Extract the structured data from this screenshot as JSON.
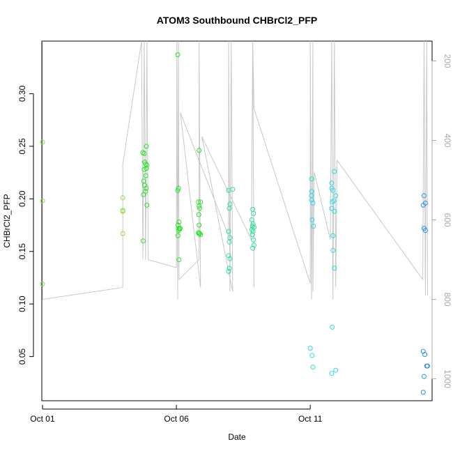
{
  "chart_data": {
    "type": "scatter",
    "title": "ATOM3 Southbound CHBrCl2_PFP",
    "xlabel": "Date",
    "ylabel": "CHBrCl2_PFP",
    "x_ticks": [
      "Oct 01",
      "Oct 06",
      "Oct 11"
    ],
    "x_tick_values": [
      1,
      6,
      11
    ],
    "xlim": [
      0.975,
      15.55
    ],
    "y_ticks": [
      "0.05",
      "0.10",
      "0.15",
      "0.20",
      "0.25",
      "0.30"
    ],
    "y_tick_values": [
      0.05,
      0.1,
      0.15,
      0.2,
      0.25,
      0.3
    ],
    "ylim": [
      0.008,
      0.35
    ],
    "y2_ticks": [
      "200",
      "400",
      "600",
      "800",
      "1000"
    ],
    "y2_tick_values": [
      200,
      400,
      600,
      800,
      1000
    ],
    "y2lim": [
      1055,
      150
    ],
    "colors": {
      "point_lime": "#8fe040",
      "point_green": "#2be02b",
      "point_mint": "#2be09a",
      "point_cyan": "#2bd8e8",
      "point_blue": "#2b8fe8",
      "altitude_line": "#c8c8c8",
      "right_axis": "#a8a8a8"
    },
    "series": [
      {
        "color_key": "point_lime",
        "points": [
          [
            1.0,
            0.254
          ],
          [
            1.0,
            0.198
          ],
          [
            1.0,
            0.119
          ],
          [
            4.0,
            0.201
          ],
          [
            4.0,
            0.189
          ],
          [
            4.0,
            0.188
          ],
          [
            4.0,
            0.167
          ]
        ]
      },
      {
        "color_key": "point_green",
        "points": [
          [
            4.75,
            0.244
          ],
          [
            4.8,
            0.243
          ],
          [
            4.82,
            0.235
          ],
          [
            4.85,
            0.233
          ],
          [
            4.88,
            0.229
          ],
          [
            4.8,
            0.228
          ],
          [
            4.9,
            0.232
          ],
          [
            4.86,
            0.222
          ],
          [
            4.78,
            0.217
          ],
          [
            4.82,
            0.213
          ],
          [
            4.87,
            0.21
          ],
          [
            4.77,
            0.204
          ],
          [
            4.85,
            0.207
          ],
          [
            4.9,
            0.194
          ],
          [
            4.76,
            0.16
          ],
          [
            4.88,
            0.25
          ],
          [
            6.05,
            0.337
          ],
          [
            6.05,
            0.208
          ],
          [
            6.08,
            0.21
          ],
          [
            6.1,
            0.178
          ],
          [
            6.06,
            0.175
          ],
          [
            6.1,
            0.172
          ],
          [
            6.12,
            0.171
          ],
          [
            6.08,
            0.17
          ],
          [
            6.14,
            0.172
          ],
          [
            6.06,
            0.165
          ],
          [
            6.1,
            0.142
          ],
          [
            6.85,
            0.246
          ],
          [
            6.82,
            0.197
          ],
          [
            6.9,
            0.197
          ],
          [
            6.85,
            0.193
          ],
          [
            6.87,
            0.191
          ],
          [
            6.84,
            0.185
          ],
          [
            6.85,
            0.175
          ],
          [
            6.82,
            0.168
          ],
          [
            6.84,
            0.167
          ],
          [
            6.87,
            0.167
          ],
          [
            6.9,
            0.166
          ]
        ]
      },
      {
        "color_key": "point_mint",
        "points": [
          [
            7.95,
            0.208
          ],
          [
            8.1,
            0.209
          ],
          [
            8.0,
            0.195
          ],
          [
            7.98,
            0.191
          ],
          [
            7.95,
            0.169
          ],
          [
            8.0,
            0.163
          ],
          [
            7.98,
            0.159
          ],
          [
            7.95,
            0.146
          ],
          [
            8.0,
            0.143
          ],
          [
            7.98,
            0.134
          ],
          [
            7.95,
            0.131
          ],
          [
            8.85,
            0.19
          ],
          [
            8.88,
            0.186
          ],
          [
            8.82,
            0.18
          ],
          [
            8.86,
            0.176
          ],
          [
            8.84,
            0.174
          ],
          [
            8.9,
            0.173
          ],
          [
            8.82,
            0.171
          ],
          [
            8.86,
            0.169
          ],
          [
            8.84,
            0.166
          ],
          [
            8.88,
            0.161
          ],
          [
            8.9,
            0.156
          ],
          [
            8.85,
            0.153
          ]
        ]
      },
      {
        "color_key": "point_cyan",
        "points": [
          [
            11.05,
            0.219
          ],
          [
            11.05,
            0.207
          ],
          [
            11.04,
            0.203
          ],
          [
            11.1,
            0.196
          ],
          [
            11.05,
            0.199
          ],
          [
            11.07,
            0.18
          ],
          [
            11.12,
            0.174
          ],
          [
            11.0,
            0.058
          ],
          [
            11.07,
            0.051
          ],
          [
            11.1,
            0.04
          ],
          [
            11.8,
            0.215
          ],
          [
            11.8,
            0.21
          ],
          [
            11.85,
            0.208
          ],
          [
            11.95,
            0.203
          ],
          [
            11.9,
            0.226
          ],
          [
            11.82,
            0.197
          ],
          [
            11.88,
            0.198
          ],
          [
            11.8,
            0.191
          ],
          [
            11.9,
            0.188
          ],
          [
            11.85,
            0.165
          ],
          [
            11.85,
            0.151
          ],
          [
            11.9,
            0.134
          ],
          [
            11.82,
            0.078
          ],
          [
            11.95,
            0.037
          ],
          [
            11.8,
            0.034
          ]
        ]
      },
      {
        "color_key": "point_blue",
        "points": [
          [
            15.25,
            0.203
          ],
          [
            15.3,
            0.196
          ],
          [
            15.22,
            0.194
          ],
          [
            15.25,
            0.172
          ],
          [
            15.3,
            0.17
          ],
          [
            15.22,
            0.055
          ],
          [
            15.28,
            0.052
          ],
          [
            15.35,
            0.041
          ],
          [
            15.38,
            0.041
          ],
          [
            15.25,
            0.031
          ],
          [
            15.22,
            0.016
          ]
        ]
      }
    ],
    "altitude_line_y2": [
      [
        1.0,
        150
      ],
      [
        1.0,
        800
      ],
      [
        4.0,
        770
      ],
      [
        4.0,
        460
      ],
      [
        4.7,
        150
      ],
      [
        4.75,
        700
      ],
      [
        4.8,
        150
      ],
      [
        4.85,
        700
      ],
      [
        4.9,
        150
      ],
      [
        4.95,
        700
      ],
      [
        6.0,
        720
      ],
      [
        6.02,
        150
      ],
      [
        6.05,
        800
      ],
      [
        6.08,
        150
      ],
      [
        6.1,
        750
      ],
      [
        6.85,
        700
      ],
      [
        6.85,
        150
      ],
      [
        6.9,
        770
      ],
      [
        6.15,
        330
      ],
      [
        7.95,
        640
      ],
      [
        7.95,
        150
      ],
      [
        8.0,
        780
      ],
      [
        8.05,
        150
      ],
      [
        8.1,
        780
      ],
      [
        6.95,
        390
      ],
      [
        8.8,
        650
      ],
      [
        8.85,
        150
      ],
      [
        8.9,
        770
      ],
      [
        8.85,
        150
      ],
      [
        8.9,
        320
      ],
      [
        11.0,
        760
      ],
      [
        11.0,
        150
      ],
      [
        11.05,
        800
      ],
      [
        11.1,
        150
      ],
      [
        11.1,
        780
      ],
      [
        11.15,
        480
      ],
      [
        11.75,
        650
      ],
      [
        11.8,
        150
      ],
      [
        11.85,
        800
      ],
      [
        11.9,
        150
      ],
      [
        11.95,
        770
      ],
      [
        12.0,
        450
      ],
      [
        15.2,
        750
      ],
      [
        15.25,
        150
      ],
      [
        15.3,
        790
      ],
      [
        15.35,
        150
      ],
      [
        15.38,
        790
      ]
    ]
  }
}
